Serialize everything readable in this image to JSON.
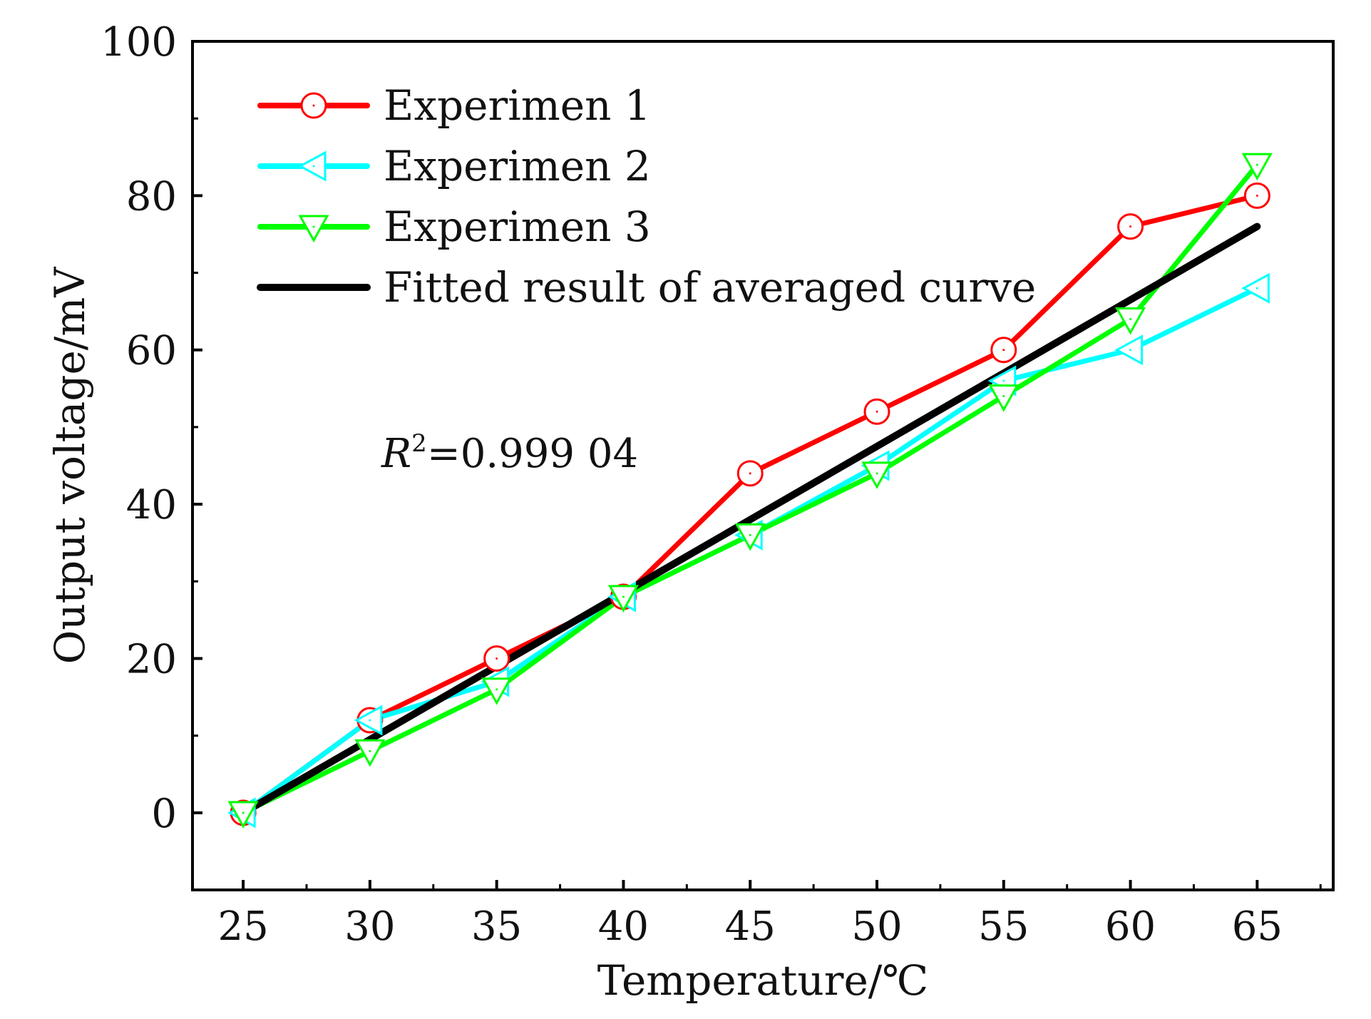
{
  "chart_data": {
    "type": "line",
    "title": "",
    "xlabel": "Temperature/℃",
    "ylabel": "Output voltage/mV",
    "xlim": [
      23,
      68
    ],
    "ylim": [
      -10,
      100
    ],
    "x": [
      25,
      30,
      35,
      40,
      45,
      50,
      55,
      60,
      65
    ],
    "x_ticks": [
      25,
      30,
      35,
      40,
      45,
      50,
      55,
      60,
      65
    ],
    "y_ticks": [
      0,
      20,
      40,
      60,
      80,
      100
    ],
    "grid": false,
    "legend_position": "top-left",
    "series": [
      {
        "name": "Experimen 1",
        "color": "#ff0000",
        "marker": "circle",
        "values": [
          0,
          12,
          20,
          28,
          44,
          52,
          60,
          76,
          80
        ]
      },
      {
        "name": "Experimen 2",
        "color": "#00ffff",
        "marker": "triangle-left",
        "values": [
          0,
          12,
          17,
          28,
          36,
          45,
          56,
          60,
          68
        ]
      },
      {
        "name": "Experimen 3",
        "color": "#00ff00",
        "marker": "triangle-down",
        "values": [
          0,
          8,
          16,
          28,
          36,
          44,
          54,
          64,
          84
        ]
      },
      {
        "name": "Fitted result of averaged curve",
        "color": "#000000",
        "marker": "none",
        "values": [
          0,
          9.5,
          19,
          28.5,
          38,
          47.5,
          57,
          66.5,
          76
        ]
      }
    ],
    "annotation": {
      "r_symbol": "R",
      "r_superscript": "2",
      "r_value": "=0.999 04"
    }
  }
}
